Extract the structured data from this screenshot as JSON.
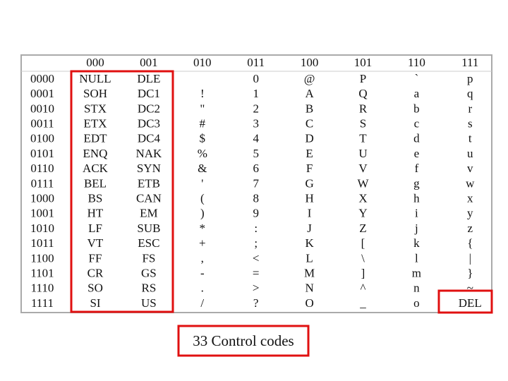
{
  "table": {
    "columns": [
      "000",
      "001",
      "010",
      "011",
      "100",
      "101",
      "110",
      "111"
    ],
    "rows": [
      {
        "label": "0000",
        "cells": [
          "NULL",
          "DLE",
          null,
          "0",
          "@",
          "P",
          "`",
          "p"
        ]
      },
      {
        "label": "0001",
        "cells": [
          "SOH",
          "DC1",
          "!",
          "1",
          "A",
          "Q",
          "a",
          "q"
        ]
      },
      {
        "label": "0010",
        "cells": [
          "STX",
          "DC2",
          "\"",
          "2",
          "B",
          "R",
          "b",
          "r"
        ]
      },
      {
        "label": "0011",
        "cells": [
          "ETX",
          "DC3",
          "#",
          "3",
          "C",
          "S",
          "c",
          "s"
        ]
      },
      {
        "label": "0100",
        "cells": [
          "EDT",
          "DC4",
          "$",
          "4",
          "D",
          "T",
          "d",
          "t"
        ]
      },
      {
        "label": "0101",
        "cells": [
          "ENQ",
          "NAK",
          "%",
          "5",
          "E",
          "U",
          "e",
          "u"
        ]
      },
      {
        "label": "0110",
        "cells": [
          "ACK",
          "SYN",
          "&",
          "6",
          "F",
          "V",
          "f",
          "v"
        ]
      },
      {
        "label": "0111",
        "cells": [
          "BEL",
          "ETB",
          "'",
          "7",
          "G",
          "W",
          "g",
          "w"
        ]
      },
      {
        "label": "1000",
        "cells": [
          "BS",
          "CAN",
          "(",
          "8",
          "H",
          "X",
          "h",
          "x"
        ]
      },
      {
        "label": "1001",
        "cells": [
          "HT",
          "EM",
          ")",
          "9",
          "I",
          "Y",
          "i",
          "y"
        ]
      },
      {
        "label": "1010",
        "cells": [
          "LF",
          "SUB",
          "*",
          ":",
          "J",
          "Z",
          "j",
          "z"
        ]
      },
      {
        "label": "1011",
        "cells": [
          "VT",
          "ESC",
          "+",
          ";",
          "K",
          "[",
          "k",
          "{"
        ]
      },
      {
        "label": "1100",
        "cells": [
          "FF",
          "FS",
          ",",
          "<",
          "L",
          "\\",
          "l",
          "|"
        ]
      },
      {
        "label": "1101",
        "cells": [
          "CR",
          "GS",
          "-",
          "=",
          "M",
          "]",
          "m",
          "}"
        ]
      },
      {
        "label": "1110",
        "cells": [
          "SO",
          "RS",
          ".",
          ">",
          "N",
          "^",
          "n",
          "~"
        ]
      },
      {
        "label": "1111",
        "cells": [
          "SI",
          "US",
          "/",
          "?",
          "O",
          "_",
          "o",
          "DEL"
        ]
      }
    ]
  },
  "annotation": "33 Control codes"
}
